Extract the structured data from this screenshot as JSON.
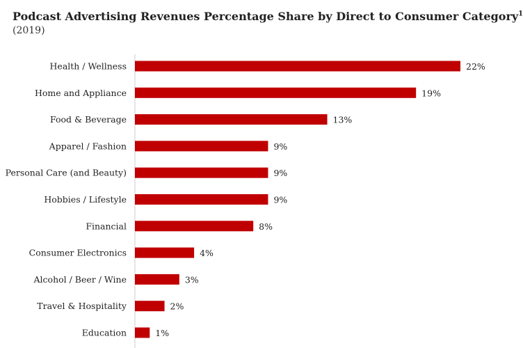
{
  "chart_data": {
    "type": "bar",
    "orientation": "horizontal",
    "title": "Podcast Advertising Revenues Percentage Share by Direct to Consumer Category",
    "title_footnote_marker": "1",
    "subtitle": "(2019)",
    "categories": [
      "Health / Wellness",
      "Home and Appliance",
      "Food & Beverage",
      "Apparel / Fashion",
      "Personal Care (and Beauty)",
      "Hobbies / Lifestyle",
      "Financial",
      "Consumer Electronics",
      "Alcohol / Beer / Wine",
      "Travel & Hospitality",
      "Education"
    ],
    "values": [
      22,
      19,
      13,
      9,
      9,
      9,
      8,
      4,
      3,
      2,
      1
    ],
    "value_labels": [
      "22%",
      "19%",
      "13%",
      "9%",
      "9%",
      "9%",
      "8%",
      "4%",
      "3%",
      "2%",
      "1%"
    ],
    "bar_color": "#c00000",
    "grid": false,
    "legend": false
  }
}
